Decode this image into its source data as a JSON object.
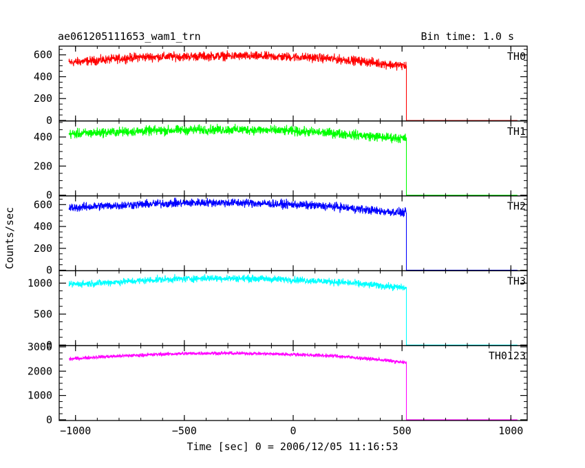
{
  "header": {
    "title": "ae061205111653_wam1_trn",
    "bin_time": "Bin time: 1.0 s"
  },
  "chart_data": {
    "type": "line",
    "title": "ae061205111653_wam1_trn",
    "xlabel": "Time [sec] 0 = 2006/12/05 11:16:53",
    "ylabel": "Counts/sec",
    "xlim": [
      -1075,
      1075
    ],
    "x_ticks": [
      -1000,
      -500,
      0,
      500,
      1000
    ],
    "x_tick_labels": [
      "−1000",
      "−500",
      "0",
      "500",
      "1000"
    ],
    "panels": [
      {
        "name": "TH0",
        "color": "#ff0000",
        "ylim": [
          -5,
          680
        ],
        "y_ticks": [
          0,
          200,
          400,
          600
        ],
        "y_tick_labels": [
          "0",
          "200",
          "400",
          "600"
        ],
        "points": [
          [
            -1030,
            530
          ],
          [
            -900,
            550
          ],
          [
            -700,
            580
          ],
          [
            -500,
            585
          ],
          [
            -300,
            590
          ],
          [
            -100,
            585
          ],
          [
            100,
            575
          ],
          [
            300,
            545
          ],
          [
            450,
            510
          ],
          [
            520,
            500
          ],
          [
            520,
            0
          ],
          [
            1030,
            0
          ]
        ],
        "noise": 40
      },
      {
        "name": "TH1",
        "color": "#00ff00",
        "ylim": [
          -5,
          510
        ],
        "y_ticks": [
          0,
          200,
          400
        ],
        "y_tick_labels": [
          "0",
          "200",
          "400"
        ],
        "points": [
          [
            -1030,
            420
          ],
          [
            -900,
            430
          ],
          [
            -600,
            445
          ],
          [
            -400,
            450
          ],
          [
            -200,
            450
          ],
          [
            0,
            440
          ],
          [
            200,
            425
          ],
          [
            400,
            400
          ],
          [
            520,
            390
          ],
          [
            520,
            0
          ],
          [
            1030,
            0
          ]
        ],
        "noise": 32
      },
      {
        "name": "TH2",
        "color": "#0000ff",
        "ylim": [
          -5,
          680
        ],
        "y_ticks": [
          0,
          200,
          400,
          600
        ],
        "y_tick_labels": [
          "0",
          "200",
          "400",
          "600"
        ],
        "points": [
          [
            -1030,
            570
          ],
          [
            -900,
            585
          ],
          [
            -600,
            610
          ],
          [
            -400,
            620
          ],
          [
            -200,
            615
          ],
          [
            0,
            600
          ],
          [
            200,
            580
          ],
          [
            400,
            540
          ],
          [
            520,
            525
          ],
          [
            520,
            0
          ],
          [
            1030,
            0
          ]
        ],
        "noise": 38
      },
      {
        "name": "TH3",
        "color": "#00ffff",
        "ylim": [
          -10,
          1200
        ],
        "y_ticks": [
          0,
          500,
          1000
        ],
        "y_tick_labels": [
          "0",
          "500",
          "1000"
        ],
        "points": [
          [
            -1030,
            980
          ],
          [
            -900,
            1000
          ],
          [
            -600,
            1060
          ],
          [
            -400,
            1080
          ],
          [
            -200,
            1075
          ],
          [
            0,
            1055
          ],
          [
            200,
            1020
          ],
          [
            400,
            960
          ],
          [
            520,
            920
          ],
          [
            520,
            0
          ],
          [
            1030,
            0
          ]
        ],
        "noise": 55
      },
      {
        "name": "TH0123",
        "color": "#ff00ff",
        "ylim": [
          -30,
          3050
        ],
        "y_ticks": [
          0,
          1000,
          2000,
          3000
        ],
        "y_tick_labels": [
          "0",
          "1000",
          "2000",
          "3000"
        ],
        "points": [
          [
            -1030,
            2500
          ],
          [
            -900,
            2580
          ],
          [
            -600,
            2700
          ],
          [
            -400,
            2740
          ],
          [
            -200,
            2730
          ],
          [
            0,
            2690
          ],
          [
            200,
            2620
          ],
          [
            400,
            2470
          ],
          [
            520,
            2340
          ],
          [
            520,
            0
          ],
          [
            1030,
            0
          ]
        ],
        "noise": 70
      }
    ],
    "grid": false,
    "legend": "none"
  }
}
